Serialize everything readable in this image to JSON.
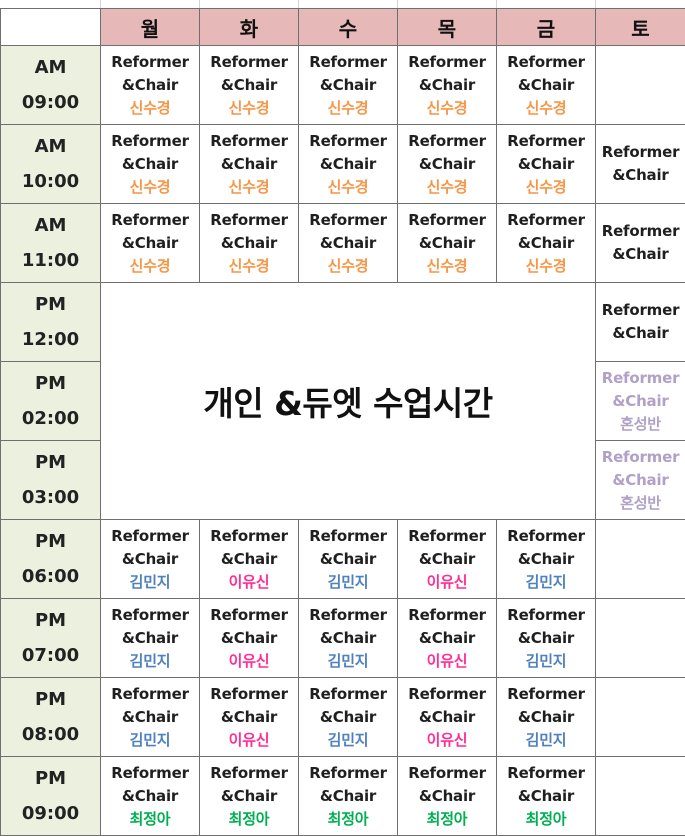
{
  "days": [
    "월",
    "화",
    "수",
    "목",
    "금",
    "토"
  ],
  "class_line1": "Reformer",
  "class_line2": "&Chair",
  "private_banner": "개인 &듀엣 수업시간",
  "colors": {
    "header_bg": "#e6b8b7",
    "time_bg": "#ebf1de",
    "orange": "#f79646",
    "blue": "#4f81bd",
    "pink": "#ff2d95",
    "green": "#00b050",
    "muted": "#b1a0c7"
  },
  "rows": [
    {
      "ampm": "AM",
      "time": "09:00",
      "sat": "",
      "sat_name": "",
      "cells": [
        {
          "name": "신수경",
          "color": "orange"
        },
        {
          "name": "신수경",
          "color": "orange"
        },
        {
          "name": "신수경",
          "color": "orange"
        },
        {
          "name": "신수경",
          "color": "orange"
        },
        {
          "name": "신수경",
          "color": "orange"
        }
      ]
    },
    {
      "ampm": "AM",
      "time": "10:00",
      "sat": "class",
      "sat_name": "",
      "cells": [
        {
          "name": "신수경",
          "color": "orange"
        },
        {
          "name": "신수경",
          "color": "orange"
        },
        {
          "name": "신수경",
          "color": "orange"
        },
        {
          "name": "신수경",
          "color": "orange"
        },
        {
          "name": "신수경",
          "color": "orange"
        }
      ]
    },
    {
      "ampm": "AM",
      "time": "11:00",
      "sat": "class",
      "sat_name": "",
      "cells": [
        {
          "name": "신수경",
          "color": "orange"
        },
        {
          "name": "신수경",
          "color": "orange"
        },
        {
          "name": "신수경",
          "color": "orange"
        },
        {
          "name": "신수경",
          "color": "orange"
        },
        {
          "name": "신수경",
          "color": "orange"
        }
      ]
    },
    {
      "ampm": "PM",
      "time": "12:00",
      "sat": "class",
      "sat_name": ""
    },
    {
      "ampm": "PM",
      "time": "02:00",
      "sat": "muted",
      "sat_name": "혼성반"
    },
    {
      "ampm": "PM",
      "time": "03:00",
      "sat": "muted",
      "sat_name": "혼성반"
    },
    {
      "ampm": "PM",
      "time": "06:00",
      "sat": "",
      "sat_name": "",
      "cells": [
        {
          "name": "김민지",
          "color": "blue"
        },
        {
          "name": "이유신",
          "color": "pink"
        },
        {
          "name": "김민지",
          "color": "blue"
        },
        {
          "name": "이유신",
          "color": "pink"
        },
        {
          "name": "김민지",
          "color": "blue"
        }
      ]
    },
    {
      "ampm": "PM",
      "time": "07:00",
      "sat": "",
      "sat_name": "",
      "cells": [
        {
          "name": "김민지",
          "color": "blue"
        },
        {
          "name": "이유신",
          "color": "pink"
        },
        {
          "name": "김민지",
          "color": "blue"
        },
        {
          "name": "이유신",
          "color": "pink"
        },
        {
          "name": "김민지",
          "color": "blue"
        }
      ]
    },
    {
      "ampm": "PM",
      "time": "08:00",
      "sat": "",
      "sat_name": "",
      "cells": [
        {
          "name": "김민지",
          "color": "blue"
        },
        {
          "name": "이유신",
          "color": "pink"
        },
        {
          "name": "김민지",
          "color": "blue"
        },
        {
          "name": "이유신",
          "color": "pink"
        },
        {
          "name": "김민지",
          "color": "blue"
        }
      ]
    },
    {
      "ampm": "PM",
      "time": "09:00",
      "sat": "",
      "sat_name": "",
      "cells": [
        {
          "name": "최정아",
          "color": "green"
        },
        {
          "name": "최정아",
          "color": "green"
        },
        {
          "name": "최정아",
          "color": "green"
        },
        {
          "name": "최정아",
          "color": "green"
        },
        {
          "name": "최정아",
          "color": "green"
        }
      ]
    }
  ]
}
